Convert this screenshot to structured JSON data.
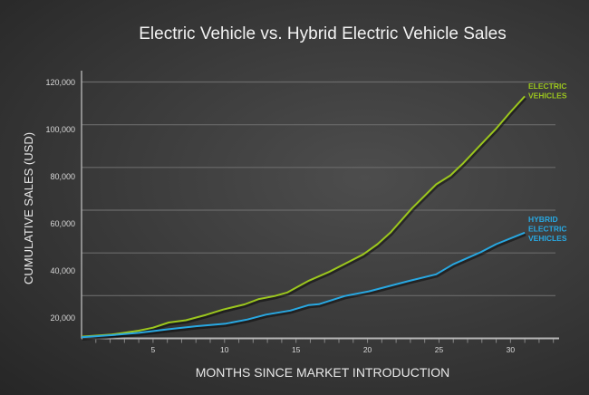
{
  "chart_data": {
    "type": "line",
    "title": "Electric Vehicle vs. Hybrid Electric Vehicle Sales",
    "xlabel": "MONTHS SINCE MARKET INTRODUCTION",
    "ylabel": "CUMULATIVE SALES (USD)",
    "xlim": [
      0,
      33.4
    ],
    "ylim": [
      0,
      120000
    ],
    "grid": true,
    "x_ticks": [
      5,
      10,
      15,
      20,
      25,
      30
    ],
    "y_ticks": [
      20000,
      40000,
      60000,
      80000,
      100000,
      120000
    ],
    "y_tick_labels": [
      "20,000",
      "40,000",
      "60,000",
      "80,000",
      "100,000",
      "120,000"
    ],
    "series": [
      {
        "name": "ELECTRIC VEHICLES",
        "label_lines": [
          "ELECTRIC",
          "VEHICLES"
        ],
        "color": "#9cc71e",
        "x": [
          0,
          2.1,
          4,
          5,
          6.1,
          7.3,
          8.7,
          9.9,
          11.4,
          12.4,
          13.5,
          14.4,
          15.9,
          17.3,
          19.7,
          20.7,
          21.6,
          23.1,
          24.8,
          25.8,
          26.7,
          27.9,
          29,
          30,
          31
        ],
        "y": [
          800,
          1800,
          3600,
          5000,
          7400,
          8500,
          11000,
          13500,
          15900,
          18400,
          19800,
          21500,
          27000,
          31100,
          39300,
          44100,
          49500,
          60800,
          72100,
          76300,
          82000,
          90500,
          98200,
          106000,
          113300
        ]
      },
      {
        "name": "HYBRID ELECTRIC VEHICLES",
        "label_lines": [
          "HYBRID",
          "ELECTRIC",
          "VEHICLES"
        ],
        "color": "#28a8e2",
        "x": [
          0,
          2.1,
          4,
          6.1,
          8,
          10.1,
          11.6,
          12.9,
          14.6,
          15.9,
          16.6,
          18.4,
          20.1,
          22.9,
          24.8,
          26,
          27.9,
          29,
          31
        ],
        "y": [
          500,
          1500,
          2600,
          4300,
          5700,
          6900,
          8800,
          11100,
          13000,
          15600,
          16000,
          19800,
          22000,
          26900,
          30000,
          34700,
          40300,
          44100,
          49500
        ]
      }
    ]
  }
}
